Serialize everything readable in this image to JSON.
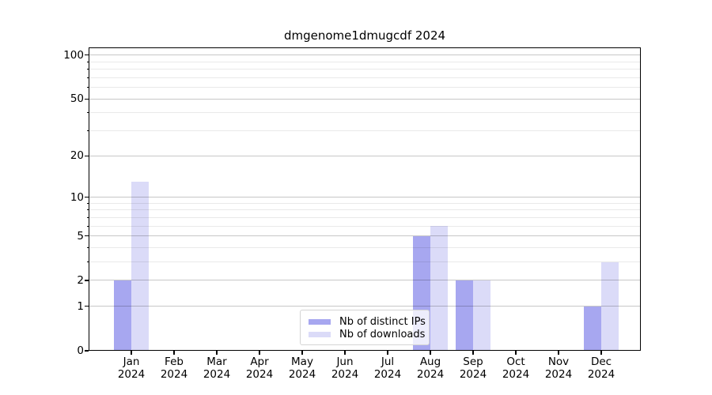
{
  "chart_data": {
    "type": "bar",
    "title": "dmgenome1dmugcdf 2024",
    "categories": [
      "Jan",
      "Feb",
      "Mar",
      "Apr",
      "May",
      "Jun",
      "Jul",
      "Aug",
      "Sep",
      "Oct",
      "Nov",
      "Dec"
    ],
    "category_year": "2024",
    "series": [
      {
        "name": "Nb of distinct IPs",
        "color": "#a7a7f0",
        "values": [
          2,
          0,
          0,
          0,
          0,
          0,
          0,
          5,
          2,
          0,
          0,
          1
        ]
      },
      {
        "name": "Nb of downloads",
        "color": "#dbdbf8",
        "values": [
          13,
          0,
          0,
          0,
          0,
          0,
          0,
          6,
          2,
          0,
          0,
          3
        ]
      }
    ],
    "yscale": "log1p",
    "ylim": [
      0,
      113
    ],
    "yticks_major": [
      0,
      1,
      2,
      5,
      10,
      20,
      50,
      100
    ],
    "yticks_minor": [
      3,
      4,
      6,
      7,
      8,
      9,
      30,
      40,
      60,
      70,
      80,
      90
    ],
    "grid": true,
    "legend_position": "lower center"
  }
}
